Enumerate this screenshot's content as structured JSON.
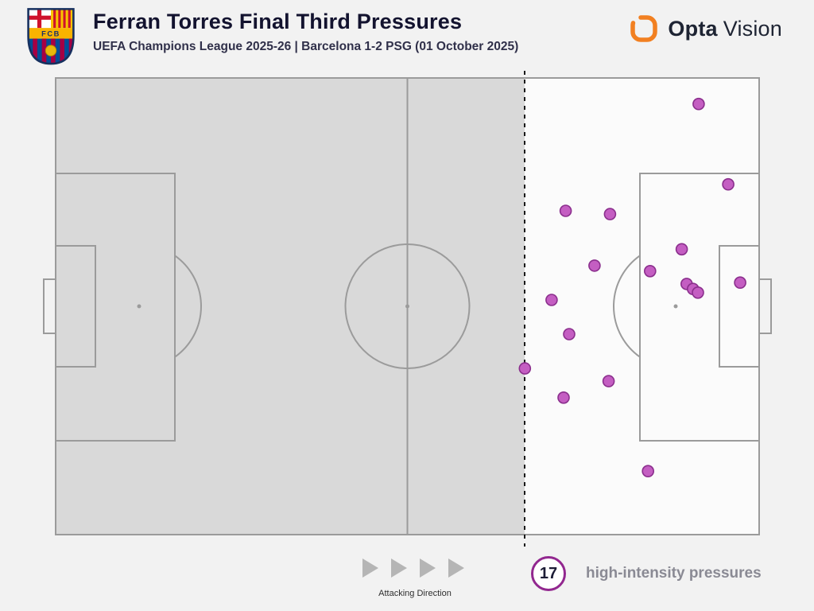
{
  "header": {
    "title": "Ferran Torres Final Third Pressures",
    "subtitle": "UEFA Champions League 2025-26 | Barcelona 1-2 PSG (01 October 2025)",
    "crest_text": "FCB",
    "brand": {
      "name_primary": "Opta",
      "name_secondary": "Vision"
    }
  },
  "chart_data": {
    "type": "scatter",
    "title": "Ferran Torres Final Third Pressures",
    "subtitle": "UEFA Champions League 2025-26 | Barcelona 1-2 PSG (01 October 2025)",
    "pitch": {
      "orientation": "horizontal",
      "attacking_direction": "left-to-right",
      "final_third_boundary_pct_x": 66.7,
      "shaded_region": "defensive-two-thirds",
      "divider_style": "dashed"
    },
    "series": [
      {
        "name": "high-intensity pressures",
        "count": 17,
        "marker_color": "#c45ec2",
        "marker_stroke": "#8b2f8d",
        "marker_radius": 7,
        "points_pct": [
          {
            "x": 91.4,
            "y": 5.7
          },
          {
            "x": 95.6,
            "y": 23.3
          },
          {
            "x": 72.5,
            "y": 29.1
          },
          {
            "x": 78.8,
            "y": 29.8
          },
          {
            "x": 89.0,
            "y": 37.5
          },
          {
            "x": 76.6,
            "y": 41.1
          },
          {
            "x": 84.5,
            "y": 42.3
          },
          {
            "x": 97.3,
            "y": 44.8
          },
          {
            "x": 89.7,
            "y": 45.1
          },
          {
            "x": 90.6,
            "y": 46.2
          },
          {
            "x": 91.3,
            "y": 47.0
          },
          {
            "x": 70.5,
            "y": 48.6
          },
          {
            "x": 73.0,
            "y": 56.1
          },
          {
            "x": 66.7,
            "y": 63.6
          },
          {
            "x": 78.6,
            "y": 66.4
          },
          {
            "x": 72.2,
            "y": 70.0
          },
          {
            "x": 84.2,
            "y": 86.1
          }
        ]
      }
    ]
  },
  "footer": {
    "attacking_direction_label": "Attacking Direction",
    "pressure_count": "17",
    "pressure_label": "high-intensity pressures"
  },
  "colors": {
    "background": "#f2f2f2",
    "pitch_shaded": "#d9d9d9",
    "final_third": "#fbfbfb",
    "pitch_lines": "#9b9b9b",
    "divider": "#1a1a1a",
    "dot_fill": "#c45ec2",
    "dot_stroke": "#8b2f8d",
    "badge_ring": "#92278f",
    "brand_orange": "#f28021",
    "title_text": "#13132f",
    "muted_text": "#8a8a94"
  }
}
